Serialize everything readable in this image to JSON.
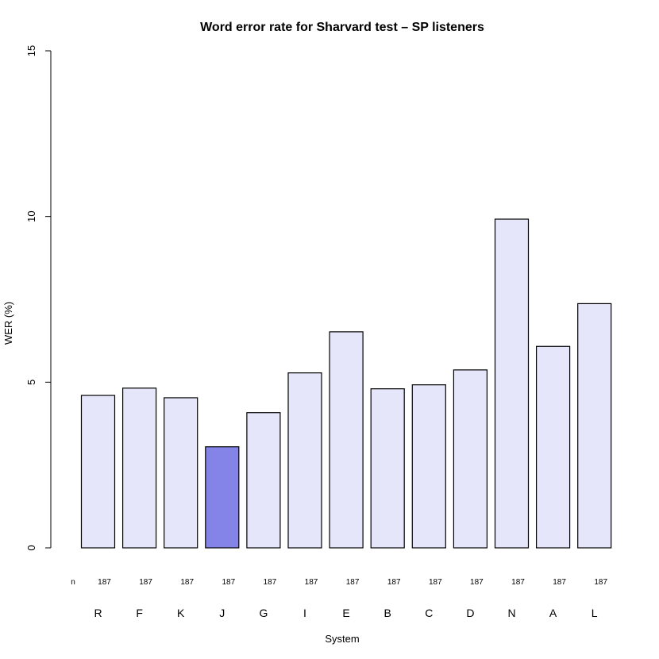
{
  "chart_data": {
    "type": "bar",
    "title": "Word error rate for Sharvard test – SP listeners",
    "xlabel": "System",
    "ylabel": "WER (%)",
    "ylim": [
      0,
      15
    ],
    "yticks": [
      0,
      5,
      10,
      15
    ],
    "categories": [
      "R",
      "F",
      "K",
      "J",
      "G",
      "I",
      "E",
      "B",
      "C",
      "D",
      "N",
      "A",
      "L"
    ],
    "values": [
      4.6,
      4.82,
      4.53,
      3.05,
      4.08,
      5.28,
      6.52,
      4.8,
      4.92,
      5.37,
      9.92,
      6.08,
      7.37
    ],
    "n_label": "n",
    "n": [
      "187",
      "187",
      "187",
      "187",
      "187",
      "187",
      "187",
      "187",
      "187",
      "187",
      "187",
      "187",
      "187"
    ],
    "highlight": "J",
    "colors": {
      "bar_fill": "#e6e6fa",
      "highlight_fill": "#8383e8",
      "stroke": "#000000"
    }
  }
}
